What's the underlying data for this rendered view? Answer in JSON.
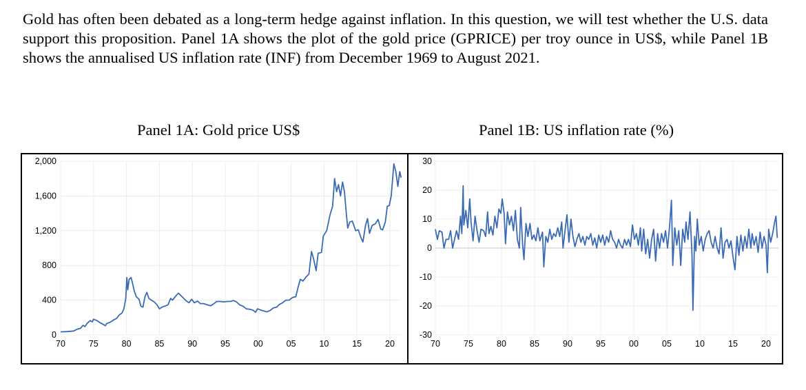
{
  "intro": "Gold has often been debated as a long-term hedge against inflation. In this question, we will test whether the U.S. data support this proposition. Panel 1A shows the plot of the gold price (GPRICE) per troy ounce in US$, while Panel 1B shows the annualised US inflation rate (INF) from December 1969 to August 2021.",
  "colors": {
    "line": "#3a6ab4",
    "grid": "#ececec"
  },
  "chart_data": [
    {
      "type": "line",
      "title": "Panel 1A: Gold price US$",
      "xlabel": "",
      "ylabel": "",
      "xlim": [
        1970,
        2021.7
      ],
      "ylim": [
        0,
        2000
      ],
      "xticks": [
        "70",
        "75",
        "80",
        "85",
        "90",
        "95",
        "00",
        "05",
        "10",
        "15",
        "20"
      ],
      "yticks": [
        "0",
        "400",
        "800",
        "1,200",
        "1,600",
        "2,000"
      ],
      "grid": true,
      "points": [
        [
          1970,
          35
        ],
        [
          1971,
          38
        ],
        [
          1972,
          45
        ],
        [
          1972.5,
          65
        ],
        [
          1973,
          75
        ],
        [
          1973.4,
          110
        ],
        [
          1973.7,
          95
        ],
        [
          1974,
          130
        ],
        [
          1974.5,
          165
        ],
        [
          1974.8,
          150
        ],
        [
          1975,
          180
        ],
        [
          1975.5,
          165
        ],
        [
          1976,
          140
        ],
        [
          1976.5,
          120
        ],
        [
          1976.8,
          105
        ],
        [
          1977,
          130
        ],
        [
          1977.5,
          145
        ],
        [
          1978,
          170
        ],
        [
          1978.5,
          190
        ],
        [
          1978.9,
          230
        ],
        [
          1979.3,
          250
        ],
        [
          1979.6,
          300
        ],
        [
          1979.9,
          420
        ],
        [
          1980.05,
          660
        ],
        [
          1980.2,
          520
        ],
        [
          1980.4,
          640
        ],
        [
          1980.7,
          660
        ],
        [
          1980.9,
          600
        ],
        [
          1981.2,
          500
        ],
        [
          1981.5,
          440
        ],
        [
          1981.9,
          410
        ],
        [
          1982.2,
          330
        ],
        [
          1982.5,
          320
        ],
        [
          1982.8,
          440
        ],
        [
          1983.1,
          490
        ],
        [
          1983.4,
          420
        ],
        [
          1983.8,
          400
        ],
        [
          1984.2,
          380
        ],
        [
          1984.6,
          350
        ],
        [
          1985,
          300
        ],
        [
          1985.4,
          320
        ],
        [
          1985.8,
          330
        ],
        [
          1986.3,
          345
        ],
        [
          1986.7,
          420
        ],
        [
          1987,
          400
        ],
        [
          1987.5,
          450
        ],
        [
          1987.9,
          480
        ],
        [
          1988.3,
          450
        ],
        [
          1988.7,
          420
        ],
        [
          1989.1,
          390
        ],
        [
          1989.5,
          370
        ],
        [
          1989.9,
          410
        ],
        [
          1990.3,
          370
        ],
        [
          1990.8,
          390
        ],
        [
          1991.2,
          360
        ],
        [
          1991.7,
          360
        ],
        [
          1992.3,
          345
        ],
        [
          1992.8,
          335
        ],
        [
          1993.3,
          360
        ],
        [
          1993.7,
          385
        ],
        [
          1994.2,
          385
        ],
        [
          1994.8,
          380
        ],
        [
          1995.3,
          385
        ],
        [
          1995.8,
          385
        ],
        [
          1996.2,
          395
        ],
        [
          1996.7,
          380
        ],
        [
          1997.2,
          345
        ],
        [
          1997.7,
          330
        ],
        [
          1998.2,
          300
        ],
        [
          1998.7,
          295
        ],
        [
          1999.2,
          285
        ],
        [
          1999.6,
          260
        ],
        [
          1999.9,
          300
        ],
        [
          2000.4,
          285
        ],
        [
          2000.9,
          275
        ],
        [
          2001.3,
          265
        ],
        [
          2001.8,
          280
        ],
        [
          2002.3,
          310
        ],
        [
          2002.8,
          320
        ],
        [
          2003.2,
          350
        ],
        [
          2003.7,
          370
        ],
        [
          2004.2,
          400
        ],
        [
          2004.7,
          400
        ],
        [
          2005.2,
          430
        ],
        [
          2005.7,
          440
        ],
        [
          2006.1,
          560
        ],
        [
          2006.4,
          640
        ],
        [
          2006.8,
          620
        ],
        [
          2007.3,
          670
        ],
        [
          2007.7,
          700
        ],
        [
          2008.1,
          960
        ],
        [
          2008.4,
          880
        ],
        [
          2008.8,
          740
        ],
        [
          2009.1,
          940
        ],
        [
          2009.6,
          950
        ],
        [
          2009.9,
          1140
        ],
        [
          2010.4,
          1200
        ],
        [
          2010.9,
          1380
        ],
        [
          2011.3,
          1480
        ],
        [
          2011.6,
          1800
        ],
        [
          2011.9,
          1650
        ],
        [
          2012.2,
          1730
        ],
        [
          2012.5,
          1600
        ],
        [
          2012.8,
          1760
        ],
        [
          2013.1,
          1650
        ],
        [
          2013.4,
          1380
        ],
        [
          2013.6,
          1230
        ],
        [
          2013.9,
          1300
        ],
        [
          2014.3,
          1310
        ],
        [
          2014.8,
          1200
        ],
        [
          2015.2,
          1210
        ],
        [
          2015.6,
          1120
        ],
        [
          2015.9,
          1070
        ],
        [
          2016.3,
          1260
        ],
        [
          2016.6,
          1340
        ],
        [
          2016.9,
          1170
        ],
        [
          2017.3,
          1260
        ],
        [
          2017.8,
          1280
        ],
        [
          2018.2,
          1330
        ],
        [
          2018.6,
          1220
        ],
        [
          2018.9,
          1210
        ],
        [
          2019.3,
          1300
        ],
        [
          2019.6,
          1480
        ],
        [
          2019.9,
          1490
        ],
        [
          2020.2,
          1600
        ],
        [
          2020.6,
          1970
        ],
        [
          2020.9,
          1880
        ],
        [
          2021.2,
          1710
        ],
        [
          2021.5,
          1880
        ],
        [
          2021.7,
          1810
        ]
      ]
    },
    {
      "type": "line",
      "title": "Panel 1B: US inflation rate (%)",
      "xlabel": "",
      "ylabel": "",
      "xlim": [
        1970,
        2021.7
      ],
      "ylim": [
        -30,
        30
      ],
      "xticks": [
        "70",
        "75",
        "80",
        "85",
        "90",
        "95",
        "00",
        "05",
        "10",
        "15",
        "20"
      ],
      "yticks": [
        "-30",
        "-20",
        "-10",
        "0",
        "10",
        "20",
        "30"
      ],
      "grid": true,
      "points": [
        [
          1970,
          6.5
        ],
        [
          1970.3,
          3
        ],
        [
          1970.6,
          6
        ],
        [
          1971,
          5.5
        ],
        [
          1971.3,
          0
        ],
        [
          1971.6,
          3
        ],
        [
          1972,
          3
        ],
        [
          1972.3,
          6
        ],
        [
          1972.6,
          0
        ],
        [
          1972.9,
          3
        ],
        [
          1973.2,
          6
        ],
        [
          1973.5,
          3
        ],
        [
          1973.8,
          11
        ],
        [
          1974,
          5
        ],
        [
          1974.2,
          21.5
        ],
        [
          1974.3,
          8
        ],
        [
          1974.6,
          13
        ],
        [
          1974.9,
          7
        ],
        [
          1975.2,
          17
        ],
        [
          1975.4,
          9
        ],
        [
          1975.7,
          2.5
        ],
        [
          1976,
          11
        ],
        [
          1976.3,
          6
        ],
        [
          1976.6,
          2
        ],
        [
          1976.9,
          6.5
        ],
        [
          1977.3,
          6
        ],
        [
          1977.6,
          4
        ],
        [
          1977.9,
          12.5
        ],
        [
          1978.1,
          5
        ],
        [
          1978.4,
          7.5
        ],
        [
          1978.7,
          4.5
        ],
        [
          1979,
          11
        ],
        [
          1979.3,
          7
        ],
        [
          1979.6,
          13.5
        ],
        [
          1979.9,
          12
        ],
        [
          1980.1,
          17
        ],
        [
          1980.4,
          12
        ],
        [
          1980.6,
          1.5
        ],
        [
          1980.9,
          12.5
        ],
        [
          1981.2,
          8
        ],
        [
          1981.5,
          11
        ],
        [
          1981.8,
          6
        ],
        [
          1982.1,
          13
        ],
        [
          1982.4,
          3
        ],
        [
          1982.7,
          0
        ],
        [
          1982.9,
          14
        ],
        [
          1983.2,
          1
        ],
        [
          1983.4,
          -4
        ],
        [
          1983.7,
          8.5
        ],
        [
          1984,
          4
        ],
        [
          1984.3,
          8.5
        ],
        [
          1984.6,
          3
        ],
        [
          1984.9,
          4.5
        ],
        [
          1985.2,
          2.5
        ],
        [
          1985.5,
          7
        ],
        [
          1985.8,
          2.5
        ],
        [
          1986.2,
          5.5
        ],
        [
          1986.4,
          -6.5
        ],
        [
          1986.7,
          4
        ],
        [
          1987,
          2
        ],
        [
          1987.3,
          6.5
        ],
        [
          1987.6,
          3
        ],
        [
          1987.9,
          5
        ],
        [
          1988.2,
          4
        ],
        [
          1988.5,
          7
        ],
        [
          1988.8,
          4
        ],
        [
          1989.1,
          9
        ],
        [
          1989.3,
          0
        ],
        [
          1989.6,
          6
        ],
        [
          1989.9,
          11.5
        ],
        [
          1990.2,
          2
        ],
        [
          1990.5,
          10
        ],
        [
          1990.8,
          4
        ],
        [
          1991.1,
          0.5
        ],
        [
          1991.4,
          3
        ],
        [
          1991.7,
          5
        ],
        [
          1992,
          2
        ],
        [
          1992.3,
          4
        ],
        [
          1992.6,
          1
        ],
        [
          1992.9,
          4
        ],
        [
          1993.2,
          3
        ],
        [
          1993.5,
          5
        ],
        [
          1993.8,
          1
        ],
        [
          1994.1,
          3.5
        ],
        [
          1994.4,
          0
        ],
        [
          1994.7,
          4.5
        ],
        [
          1995,
          2
        ],
        [
          1995.3,
          4.5
        ],
        [
          1995.6,
          1
        ],
        [
          1995.9,
          4
        ],
        [
          1996.2,
          2
        ],
        [
          1996.5,
          6
        ],
        [
          1996.8,
          3
        ],
        [
          1997.1,
          2
        ],
        [
          1997.4,
          0
        ],
        [
          1997.7,
          3
        ],
        [
          1998,
          1
        ],
        [
          1998.3,
          0
        ],
        [
          1998.6,
          3
        ],
        [
          1998.9,
          1
        ],
        [
          1999.2,
          3
        ],
        [
          1999.5,
          0.5
        ],
        [
          1999.8,
          8
        ],
        [
          2000.1,
          3
        ],
        [
          2000.4,
          5
        ],
        [
          2000.7,
          1
        ],
        [
          2001,
          7
        ],
        [
          2001.2,
          -1
        ],
        [
          2001.5,
          6.5
        ],
        [
          2001.8,
          -2
        ],
        [
          2002.1,
          3
        ],
        [
          2002.4,
          -3.5
        ],
        [
          2002.7,
          3
        ],
        [
          2003,
          6.5
        ],
        [
          2003.3,
          -4.5
        ],
        [
          2003.6,
          5
        ],
        [
          2003.9,
          0
        ],
        [
          2004.2,
          5
        ],
        [
          2004.5,
          2
        ],
        [
          2004.8,
          6
        ],
        [
          2005.1,
          0
        ],
        [
          2005.4,
          7
        ],
        [
          2005.7,
          16.5
        ],
        [
          2005.9,
          -6
        ],
        [
          2006.2,
          7
        ],
        [
          2006.5,
          1
        ],
        [
          2006.8,
          6
        ],
        [
          2007.1,
          -6
        ],
        [
          2007.4,
          6.5
        ],
        [
          2007.7,
          2
        ],
        [
          2007.9,
          9
        ],
        [
          2008.2,
          3
        ],
        [
          2008.5,
          12.5
        ],
        [
          2008.8,
          -2
        ],
        [
          2008.95,
          -21.5
        ],
        [
          2009.2,
          4
        ],
        [
          2009.4,
          -1
        ],
        [
          2009.6,
          10
        ],
        [
          2009.9,
          1
        ],
        [
          2010.2,
          4
        ],
        [
          2010.5,
          -1
        ],
        [
          2010.8,
          3
        ],
        [
          2011.1,
          5
        ],
        [
          2011.4,
          6
        ],
        [
          2011.7,
          2
        ],
        [
          2012,
          0
        ],
        [
          2012.3,
          4
        ],
        [
          2012.6,
          0
        ],
        [
          2012.9,
          -2
        ],
        [
          2013.2,
          7
        ],
        [
          2013.5,
          -3.5
        ],
        [
          2013.8,
          2
        ],
        [
          2014.1,
          3
        ],
        [
          2014.4,
          0
        ],
        [
          2014.7,
          2.5
        ],
        [
          2015,
          -3
        ],
        [
          2015.3,
          -7.5
        ],
        [
          2015.6,
          4
        ],
        [
          2015.9,
          -2.5
        ],
        [
          2016.2,
          4.5
        ],
        [
          2016.5,
          -1
        ],
        [
          2016.8,
          4
        ],
        [
          2017.1,
          0
        ],
        [
          2017.4,
          6.5
        ],
        [
          2017.7,
          0
        ],
        [
          2017.9,
          5
        ],
        [
          2018.2,
          1
        ],
        [
          2018.5,
          4
        ],
        [
          2018.8,
          -1.5
        ],
        [
          2019.1,
          5.5
        ],
        [
          2019.4,
          0
        ],
        [
          2019.7,
          4
        ],
        [
          2020,
          1
        ],
        [
          2020.2,
          -8.5
        ],
        [
          2020.4,
          6.5
        ],
        [
          2020.7,
          2
        ],
        [
          2021,
          5
        ],
        [
          2021.3,
          9
        ],
        [
          2021.5,
          11
        ],
        [
          2021.7,
          3.5
        ]
      ]
    }
  ]
}
